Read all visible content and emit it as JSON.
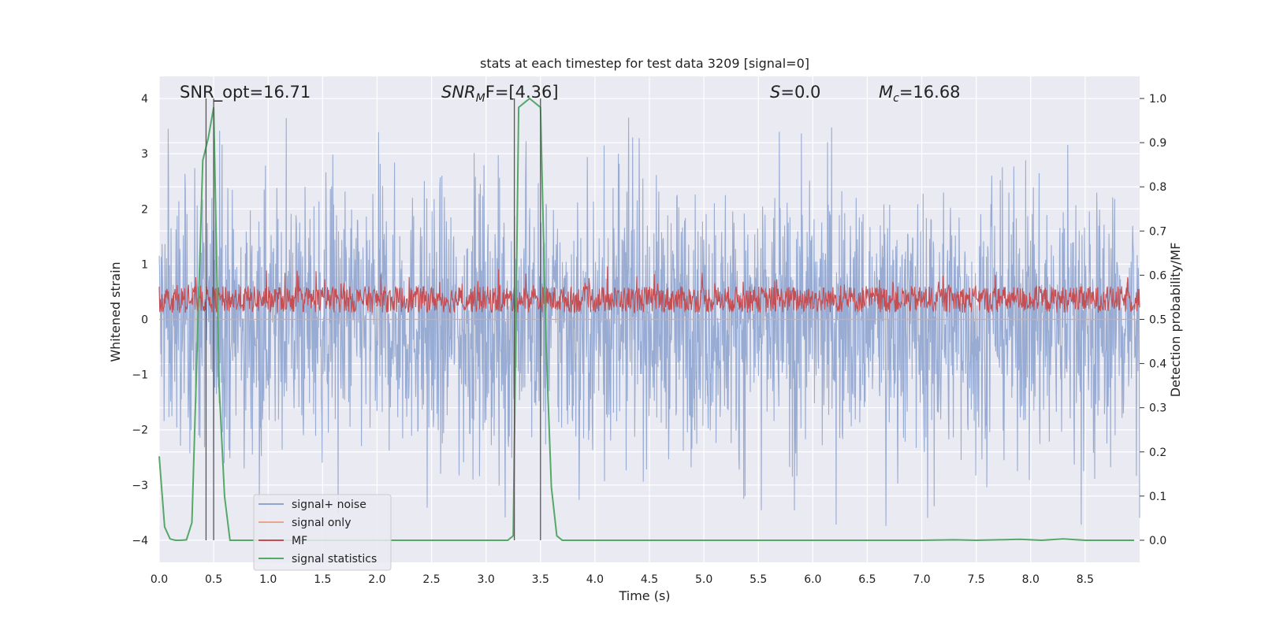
{
  "chart_data": {
    "type": "line",
    "title": "stats at each timestep for test data 3209 [signal=0]",
    "xlabel": "Time (s)",
    "ylabel": "Whitened strain",
    "y2label": "Detection probability/MF",
    "xlim": [
      0.0,
      9.0
    ],
    "ylim": [
      -4.4,
      4.4
    ],
    "y2lim": [
      -0.05,
      1.05
    ],
    "xticks": [
      "0.0",
      "0.5",
      "1.0",
      "1.5",
      "2.0",
      "2.5",
      "3.0",
      "3.5",
      "4.0",
      "4.5",
      "5.0",
      "5.5",
      "6.0",
      "6.5",
      "7.0",
      "7.5",
      "8.0",
      "8.5"
    ],
    "yticks": [
      "4",
      "3",
      "2",
      "1",
      "0",
      "−1",
      "−2",
      "−3",
      "−4"
    ],
    "y2ticks": [
      "1.0",
      "0.9",
      "0.8",
      "0.7",
      "0.6",
      "0.5",
      "0.4",
      "0.3",
      "0.2",
      "0.1",
      "0.0"
    ],
    "grid": true,
    "legend_position": "lower-left",
    "annotations": {
      "snr_opt": "SNR_opt=16.71",
      "snr_mf_main": "SNR",
      "snr_mf_sub": "M",
      "snr_mf_rest": "F=[4.36]",
      "s_main": "S",
      "s_rest": "=0.0",
      "mc_main": "M",
      "mc_sub": "c",
      "mc_rest": "=16.68"
    },
    "series": [
      {
        "name": "signal+ noise",
        "color": "#8fa4cf",
        "envelope": {
          "upper_typical": 2.0,
          "lower_typical": -2.0,
          "max_peak": 4.0,
          "min_peak": -3.8
        }
      },
      {
        "name": "signal only",
        "color": "#e8a58c",
        "values_note": "flat at 0"
      },
      {
        "name": "MF",
        "color": "#c44e52",
        "axis": "right",
        "range": [
          0.5,
          0.65
        ]
      },
      {
        "name": "signal statistics",
        "color": "#55a868",
        "axis": "right",
        "x": [
          0.0,
          0.05,
          0.1,
          0.15,
          0.2,
          0.25,
          0.3,
          0.35,
          0.4,
          0.45,
          0.5,
          0.55,
          0.6,
          0.65,
          0.7,
          3.0,
          3.1,
          3.2,
          3.25,
          3.3,
          3.35,
          3.4,
          3.45,
          3.5,
          3.55,
          3.6,
          3.65,
          3.7,
          4.0,
          5.0,
          6.0,
          7.0,
          7.3,
          7.5,
          7.7,
          7.9,
          8.1,
          8.3,
          8.5,
          8.7,
          8.95
        ],
        "y": [
          0.19,
          0.03,
          0.003,
          0.0,
          0.0,
          0.001,
          0.04,
          0.45,
          0.86,
          0.91,
          0.98,
          0.35,
          0.1,
          0.0,
          0.0,
          0.0,
          0.0,
          0.0,
          0.01,
          0.98,
          0.99,
          1.0,
          0.99,
          0.98,
          0.45,
          0.12,
          0.01,
          0.0,
          0.0,
          0.0,
          0.0,
          0.0,
          0.001,
          0.0,
          0.001,
          0.002,
          0.0,
          0.003,
          0.0,
          0.0,
          0.0
        ]
      }
    ],
    "vlines_x": [
      0.43,
      0.5,
      3.26,
      3.5
    ]
  }
}
